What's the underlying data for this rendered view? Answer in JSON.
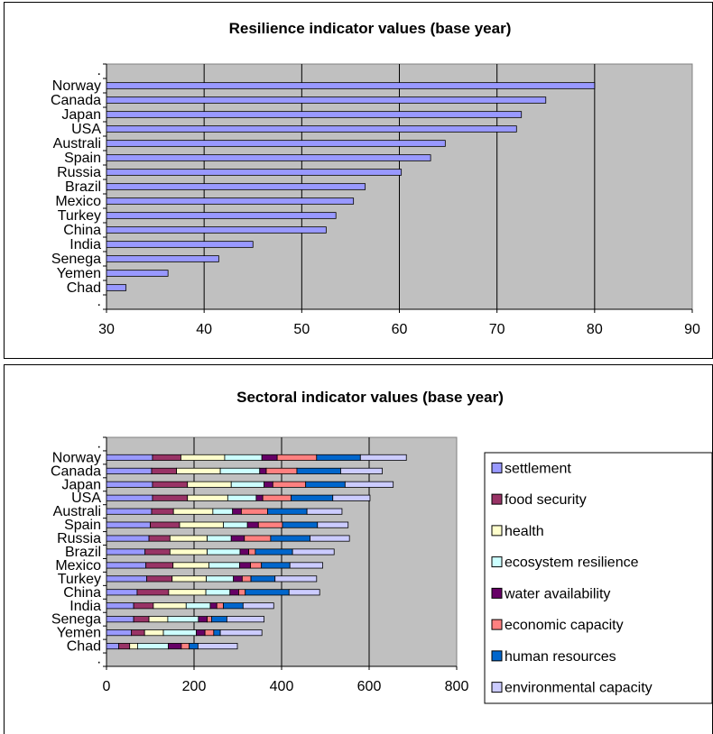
{
  "chart_data": [
    {
      "type": "bar",
      "orientation": "horizontal",
      "title": "Resilience indicator values (base year)",
      "categories": [
        "Norway",
        "Canada",
        "Japan",
        "USA",
        "Australi",
        "Spain",
        "Russia",
        "Brazil",
        "Mexico",
        "Turkey",
        "China",
        "India",
        "Senega",
        "Yemen",
        "Chad"
      ],
      "values": [
        80,
        75,
        72.5,
        72,
        64.7,
        63.2,
        60.2,
        56.5,
        55.3,
        53.5,
        52.5,
        45,
        41.5,
        36.3,
        32
      ],
      "xlim": [
        30,
        90
      ],
      "xticks": [
        "30",
        "40",
        "50",
        "60",
        "70",
        "80",
        "90"
      ],
      "grid": "vertical",
      "bar_color": "#9999ff",
      "plot_bg": "#c0c0c0"
    },
    {
      "type": "bar",
      "orientation": "horizontal",
      "stacked": true,
      "title": "Sectoral indicator values (base year)",
      "categories": [
        "Norway",
        "Canada",
        "Japan",
        "USA",
        "Australi",
        "Spain",
        "Russia",
        "Brazil",
        "Mexico",
        "Turkey",
        "China",
        "India",
        "Senega",
        "Yemen",
        "Chad"
      ],
      "series": [
        {
          "name": "settlement",
          "color": "#9999ff",
          "values": [
            105,
            103,
            105,
            105,
            103,
            100,
            97,
            88,
            90,
            92,
            70,
            62,
            62,
            57,
            28
          ]
        },
        {
          "name": "food security",
          "color": "#993366",
          "values": [
            65,
            57,
            80,
            80,
            50,
            67,
            48,
            57,
            62,
            58,
            72,
            45,
            35,
            30,
            25
          ]
        },
        {
          "name": "health",
          "color": "#ffffcc",
          "values": [
            100,
            100,
            100,
            92,
            90,
            100,
            85,
            85,
            82,
            78,
            85,
            75,
            43,
            43,
            18
          ]
        },
        {
          "name": "ecosystem resilience",
          "color": "#ccffff",
          "values": [
            85,
            90,
            75,
            65,
            45,
            55,
            55,
            75,
            70,
            62,
            55,
            55,
            70,
            75,
            70
          ]
        },
        {
          "name": "water availability",
          "color": "#660066",
          "values": [
            35,
            15,
            20,
            15,
            20,
            25,
            30,
            20,
            25,
            20,
            20,
            15,
            20,
            20,
            30
          ]
        },
        {
          "name": "economic capacity",
          "color": "#ff8080",
          "values": [
            90,
            70,
            75,
            65,
            60,
            55,
            60,
            15,
            25,
            20,
            15,
            15,
            10,
            20,
            18
          ]
        },
        {
          "name": "human resources",
          "color": "#0066cc",
          "values": [
            100,
            100,
            90,
            95,
            90,
            80,
            90,
            85,
            65,
            55,
            100,
            45,
            35,
            15,
            20
          ]
        },
        {
          "name": "environmental capacity",
          "color": "#ccccff",
          "values": [
            105,
            95,
            110,
            85,
            80,
            70,
            90,
            95,
            75,
            95,
            70,
            70,
            85,
            95,
            90
          ]
        }
      ],
      "xlim": [
        0,
        800
      ],
      "xticks": [
        "0",
        "200",
        "400",
        "600",
        "800"
      ],
      "grid": "vertical",
      "plot_bg": "#c0c0c0",
      "legend": "right"
    }
  ]
}
